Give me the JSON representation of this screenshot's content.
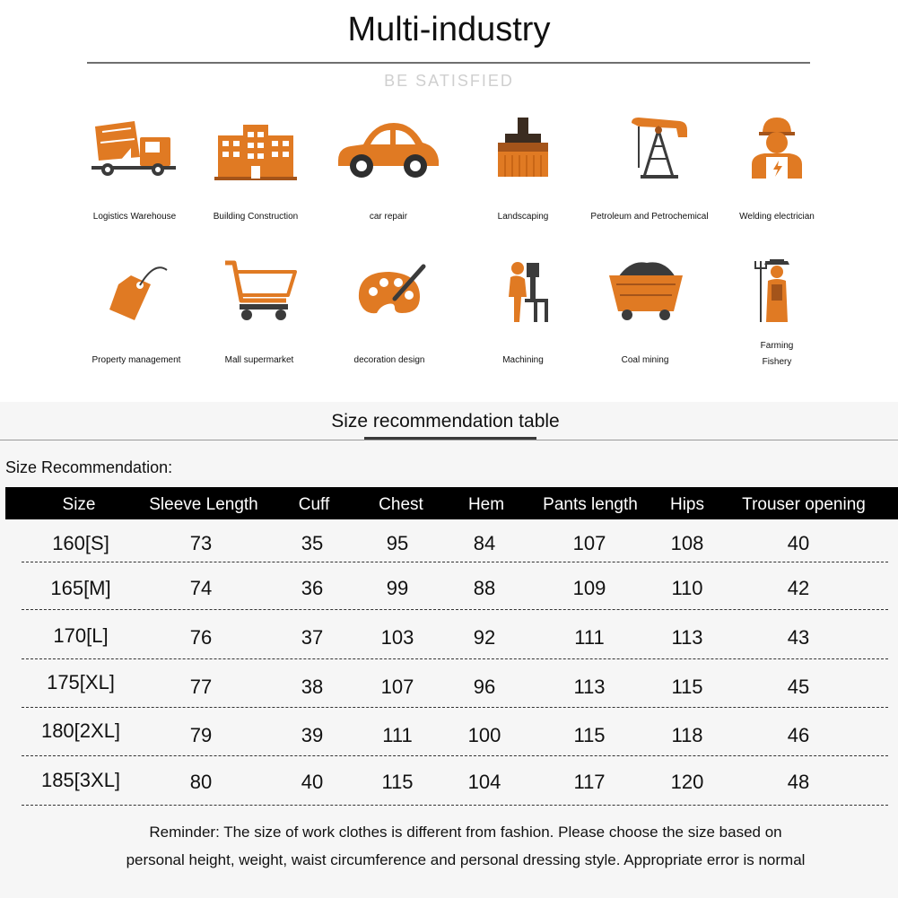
{
  "header": {
    "title": "Multi-industry",
    "subtitle": "BE SATISFIED"
  },
  "industries": [
    {
      "label": "Logistics Warehouse",
      "icon": "cement-mixer-truck-icon"
    },
    {
      "label": "Building Construction",
      "icon": "office-building-icon"
    },
    {
      "label": "car repair",
      "icon": "car-icon"
    },
    {
      "label": "Landscaping",
      "icon": "brush-icon"
    },
    {
      "label": "Petroleum and Petrochemical",
      "icon": "oil-pump-icon"
    },
    {
      "label": "Welding electrician",
      "icon": "electrician-icon"
    },
    {
      "label": "Property management",
      "icon": "price-tag-icon"
    },
    {
      "label": "Mall supermarket",
      "icon": "shopping-cart-icon"
    },
    {
      "label": "decoration design",
      "icon": "paint-palette-icon"
    },
    {
      "label": "Machining",
      "icon": "machinist-icon"
    },
    {
      "label": "Coal mining",
      "icon": "mine-cart-icon"
    },
    {
      "label": "Farming",
      "label2": "Fishery",
      "icon": "farmer-icon"
    }
  ],
  "size_section": {
    "title": "Size recommendation table",
    "recommendation_label": "Size Recommendation:",
    "columns": [
      "Size",
      "Sleeve Length",
      "Cuff",
      "Chest",
      "Hem",
      "Pants length",
      "Hips",
      "Trouser opening"
    ],
    "rows": [
      [
        "160[S]",
        "73",
        "35",
        "95",
        "84",
        "107",
        "108",
        "40"
      ],
      [
        "165[M]",
        "74",
        "36",
        "99",
        "88",
        "109",
        "110",
        "42"
      ],
      [
        "170[L]",
        "76",
        "37",
        "103",
        "92",
        "111",
        "113",
        "43"
      ],
      [
        "175[XL]",
        "77",
        "38",
        "107",
        "96",
        "113",
        "115",
        "45"
      ],
      [
        "180[2XL]",
        "79",
        "39",
        "111",
        "100",
        "115",
        "118",
        "46"
      ],
      [
        "185[3XL]",
        "80",
        "40",
        "115",
        "104",
        "117",
        "120",
        "48"
      ]
    ],
    "reminder_line1": "Reminder: The size of work clothes is different from fashion. Please choose the size based on",
    "reminder_line2": "personal height, weight, waist circumference and personal dressing style. Appropriate error is normal"
  },
  "colors": {
    "accent": "#e07a23",
    "accent_dark": "#a4541a",
    "header_bg": "#000000",
    "lower_bg": "#f6f6f6"
  }
}
